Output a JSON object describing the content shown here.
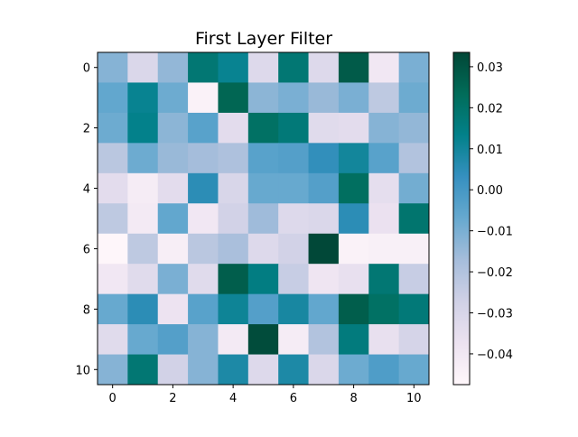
{
  "chart_data": {
    "type": "heatmap",
    "title": "First Layer Filter",
    "xlabel": "",
    "ylabel": "",
    "rows": 11,
    "cols": 11,
    "x_ticks": [
      0,
      2,
      4,
      6,
      8,
      10
    ],
    "y_ticks": [
      0,
      2,
      4,
      6,
      8,
      10
    ],
    "colormap": "PuBuGn",
    "colorbar": {
      "vmin": -0.0475,
      "vmax": 0.0335,
      "ticks": [
        -0.04,
        -0.03,
        -0.02,
        -0.01,
        0.0,
        0.01,
        0.02,
        0.03
      ],
      "tick_labels": [
        "−0.04",
        "−0.03",
        "−0.02",
        "−0.01",
        "0.00",
        "0.01",
        "0.02",
        "0.03"
      ]
    },
    "values": [
      [
        -0.012,
        -0.031,
        -0.014,
        0.018,
        0.012,
        -0.032,
        0.018,
        -0.032,
        0.028,
        -0.04,
        -0.01
      ],
      [
        -0.006,
        0.012,
        -0.008,
        -0.045,
        0.025,
        -0.013,
        -0.01,
        -0.015,
        -0.01,
        -0.023,
        -0.008
      ],
      [
        -0.008,
        0.013,
        -0.013,
        -0.004,
        -0.034,
        0.021,
        0.017,
        -0.033,
        -0.034,
        -0.012,
        -0.014
      ],
      [
        -0.022,
        -0.008,
        -0.015,
        -0.017,
        -0.019,
        -0.004,
        -0.003,
        0.004,
        0.01,
        -0.004,
        -0.02
      ],
      [
        -0.034,
        -0.042,
        -0.034,
        0.005,
        -0.03,
        -0.007,
        -0.007,
        -0.003,
        0.022,
        -0.035,
        -0.009
      ],
      [
        -0.023,
        -0.041,
        -0.006,
        -0.04,
        -0.028,
        -0.016,
        -0.032,
        -0.031,
        0.005,
        -0.037,
        0.019
      ],
      [
        -0.047,
        -0.023,
        -0.043,
        -0.022,
        -0.018,
        -0.032,
        -0.028,
        0.033,
        -0.045,
        -0.044,
        -0.044
      ],
      [
        -0.04,
        -0.033,
        -0.01,
        -0.033,
        0.027,
        0.015,
        -0.025,
        -0.039,
        -0.036,
        0.018,
        -0.025
      ],
      [
        -0.007,
        0.005,
        -0.038,
        -0.004,
        0.011,
        -0.003,
        0.009,
        -0.006,
        0.027,
        0.021,
        0.017
      ],
      [
        -0.033,
        -0.007,
        -0.003,
        -0.012,
        -0.041,
        0.032,
        -0.042,
        -0.02,
        0.016,
        -0.036,
        -0.029
      ],
      [
        -0.012,
        0.018,
        -0.028,
        -0.012,
        0.008,
        -0.032,
        0.008,
        -0.031,
        -0.008,
        -0.002,
        -0.007
      ]
    ]
  }
}
